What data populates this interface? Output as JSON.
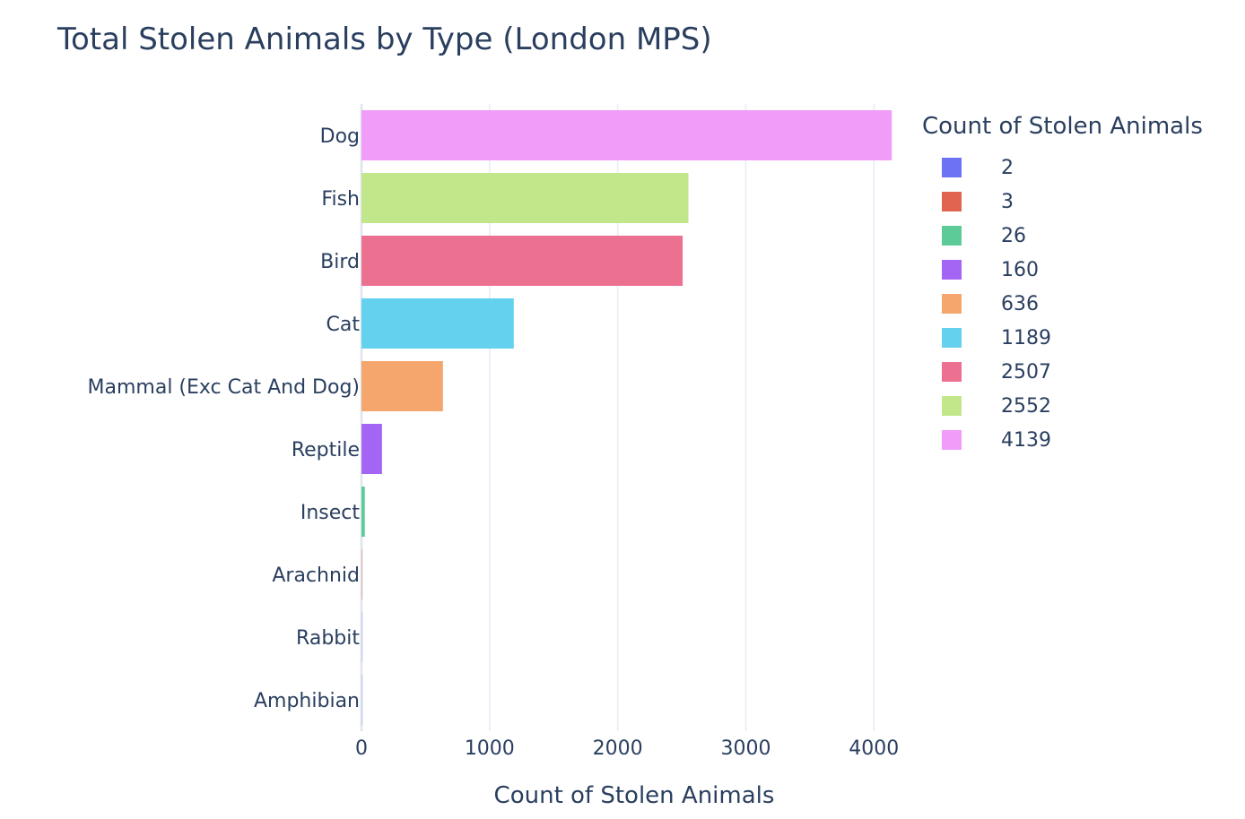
{
  "chart_data": {
    "type": "bar",
    "orientation": "horizontal",
    "title": "Total Stolen Animals by Type (London MPS)",
    "xlabel": "Count of Stolen Animals",
    "ylabel": "",
    "xlim": [
      0,
      4250
    ],
    "x_ticks": [
      0,
      1000,
      2000,
      3000,
      4000
    ],
    "x_tick_labels": [
      "0",
      "1000",
      "2000",
      "3000",
      "4000"
    ],
    "grid": true,
    "legend_position": "right",
    "legend_title": "Count of Stolen Animals",
    "categories": [
      "Dog",
      "Fish",
      "Bird",
      "Cat",
      "Mammal (Exc Cat And Dog)",
      "Reptile",
      "Insect",
      "Arachnid",
      "Rabbit",
      "Amphibian"
    ],
    "values": [
      4139,
      2552,
      2507,
      1189,
      636,
      160,
      26,
      3,
      2,
      2
    ],
    "colors": [
      "#f19cf9",
      "#c1e78a",
      "#ec7191",
      "#64d1ef",
      "#f5a66c",
      "#a465f4",
      "#5dcb98",
      "#e0644f",
      "#6b72f3",
      "#6b72f3"
    ],
    "legend": [
      {
        "label": "2",
        "color": "#6b72f3"
      },
      {
        "label": "3",
        "color": "#e0644f"
      },
      {
        "label": "26",
        "color": "#5dcb98"
      },
      {
        "label": "160",
        "color": "#a465f4"
      },
      {
        "label": "636",
        "color": "#f5a66c"
      },
      {
        "label": "1189",
        "color": "#64d1ef"
      },
      {
        "label": "2507",
        "color": "#ec7191"
      },
      {
        "label": "2552",
        "color": "#c1e78a"
      },
      {
        "label": "4139",
        "color": "#f19cf9"
      }
    ]
  }
}
